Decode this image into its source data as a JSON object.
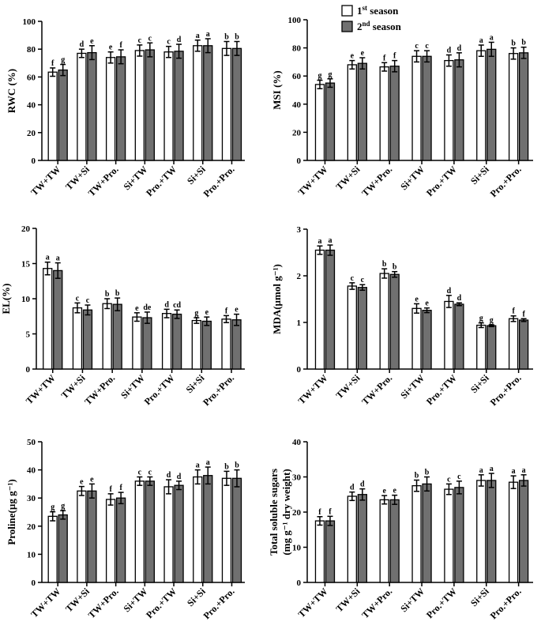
{
  "legend": [
    {
      "label": "1st season",
      "base": "1",
      "sup": "st",
      "rest": " season",
      "fill": "#ffffff"
    },
    {
      "label": "2nd season",
      "base": "2",
      "sup": "nd",
      "rest": " season",
      "fill": "#707070"
    }
  ],
  "chart_data": [
    {
      "type": "bar",
      "id": "rwc",
      "ylabel": "RWC (%)",
      "ylim": [
        0,
        100
      ],
      "yticks": [
        0,
        20,
        40,
        60,
        80,
        100
      ],
      "categories": [
        "TW+TW",
        "TW+Si",
        "TW+Pro.",
        "Si+TW",
        "Pro.+TW",
        "Si+Si",
        "Pro.+Pro."
      ],
      "series": [
        {
          "name": "1st season",
          "values": [
            63.5,
            77,
            74,
            79,
            78,
            82.5,
            80.5
          ],
          "errors": [
            3,
            3,
            4,
            4,
            4,
            4,
            5
          ],
          "letters": [
            "f",
            "d",
            "e",
            "c",
            "c",
            "a",
            "b"
          ]
        },
        {
          "name": "2nd season",
          "values": [
            65,
            77.5,
            74.5,
            79.5,
            78.5,
            82.5,
            80.5
          ],
          "errors": [
            4,
            5,
            5,
            5,
            5,
            5,
            5
          ],
          "letters": [
            "g",
            "e",
            "f",
            "c",
            "d",
            "a",
            "b"
          ]
        }
      ]
    },
    {
      "type": "bar",
      "id": "msi",
      "ylabel": "MSI (%)",
      "ylim": [
        0,
        100
      ],
      "yticks": [
        0,
        20,
        40,
        60,
        80,
        100
      ],
      "categories": [
        "TW+TW",
        "TW+Si",
        "TW+Pro.",
        "Si+TW",
        "Pro.+TW",
        "Si+Si",
        "Pro.+Pro."
      ],
      "series": [
        {
          "name": "1st season",
          "values": [
            54,
            68,
            66.5,
            74,
            71,
            78,
            76
          ],
          "errors": [
            3,
            3,
            3,
            4,
            4,
            4,
            4
          ],
          "letters": [
            "g",
            "e",
            "f",
            "c",
            "d",
            "a",
            "b"
          ]
        },
        {
          "name": "2nd season",
          "values": [
            55,
            69,
            67,
            74,
            71.5,
            79,
            76.5
          ],
          "errors": [
            3,
            4,
            4,
            4,
            5,
            5,
            4
          ],
          "letters": [
            "g",
            "e",
            "f",
            "c",
            "d",
            "a",
            "b"
          ]
        }
      ]
    },
    {
      "type": "bar",
      "id": "el",
      "ylabel": "EL(%)",
      "ylim": [
        0,
        20
      ],
      "yticks": [
        0,
        5,
        10,
        15,
        20
      ],
      "categories": [
        "TW+TW",
        "TW+Si",
        "TW+Pro.",
        "Si+TW",
        "Pro.+TW",
        "Si+Si",
        "Pro.+Pro."
      ],
      "series": [
        {
          "name": "1st season",
          "values": [
            14.3,
            8.7,
            9.3,
            7.4,
            7.9,
            6.9,
            7.1
          ],
          "errors": [
            0.9,
            0.7,
            0.7,
            0.6,
            0.6,
            0.4,
            0.5
          ],
          "letters": [
            "a",
            "c",
            "b",
            "e",
            "d",
            "g",
            "f"
          ]
        },
        {
          "name": "2nd season",
          "values": [
            14.0,
            8.4,
            9.2,
            7.3,
            7.8,
            6.8,
            7.0
          ],
          "errors": [
            1.1,
            0.7,
            0.9,
            0.8,
            0.6,
            0.6,
            0.8
          ],
          "letters": [
            "a",
            "c",
            "b",
            "de",
            "cd",
            "e",
            "e"
          ]
        }
      ]
    },
    {
      "type": "bar",
      "id": "mda",
      "ylabel": "MDA(µmol g⁻¹)",
      "ylim": [
        0,
        3
      ],
      "yticks": [
        0,
        1,
        2,
        3
      ],
      "categories": [
        "TW+TW",
        "TW+Si",
        "TW+Pro.",
        "Si+TW",
        "Pro.+TW",
        "Si+Si",
        "Pro.+Pro."
      ],
      "series": [
        {
          "name": "1st season",
          "values": [
            2.55,
            1.78,
            2.05,
            1.3,
            1.45,
            0.94,
            1.08
          ],
          "errors": [
            0.09,
            0.07,
            0.1,
            0.1,
            0.13,
            0.05,
            0.06
          ],
          "letters": [
            "a",
            "c",
            "b",
            "e",
            "d",
            "g",
            "f"
          ]
        },
        {
          "name": "2nd season",
          "values": [
            2.55,
            1.75,
            2.03,
            1.26,
            1.39,
            0.93,
            1.05
          ],
          "errors": [
            0.11,
            0.06,
            0.06,
            0.05,
            0.03,
            0.02,
            0.03
          ],
          "letters": [
            "a",
            "c",
            "b",
            "e",
            "d",
            "g",
            "f"
          ]
        }
      ]
    },
    {
      "type": "bar",
      "id": "proline",
      "ylabel": "Proline(µg g⁻¹)",
      "ylim": [
        0,
        50
      ],
      "yticks": [
        0,
        10,
        20,
        30,
        40,
        50
      ],
      "categories": [
        "TW+TW",
        "TW+Si",
        "TW+Pro.",
        "Si+TW",
        "Pro.+TW",
        "Si+Si",
        "Pro.+Pro."
      ],
      "series": [
        {
          "name": "1st season",
          "values": [
            23.5,
            32.5,
            29.5,
            36,
            34,
            37.5,
            37
          ],
          "errors": [
            1.6,
            1.6,
            2,
            1.5,
            2.5,
            2.5,
            2.5
          ],
          "letters": [
            "g",
            "e",
            "f",
            "c",
            "d",
            "a",
            "b"
          ]
        },
        {
          "name": "2nd season",
          "values": [
            24,
            32.5,
            30,
            36,
            34.5,
            38,
            37
          ],
          "errors": [
            1.5,
            2.5,
            2,
            1.5,
            1.5,
            3,
            3
          ],
          "letters": [
            "g",
            "e",
            "f",
            "c",
            "d",
            "a",
            "b"
          ]
        }
      ]
    },
    {
      "type": "bar",
      "id": "sugars",
      "ylabel_lines": [
        "Total soluble sugars",
        "(mg g⁻¹ dry weight)"
      ],
      "ylim": [
        0,
        40
      ],
      "yticks": [
        0,
        10,
        20,
        30,
        40
      ],
      "categories": [
        "TW+TW",
        "TW+Si",
        "TW+Pro.",
        "Si+TW",
        "Pro.+TW",
        "Si+Si",
        "Pro.+Pro."
      ],
      "series": [
        {
          "name": "1st season",
          "values": [
            17.5,
            24.5,
            23.5,
            27.5,
            26.5,
            29,
            28.5
          ],
          "errors": [
            1.2,
            1.2,
            1.2,
            1.6,
            1.5,
            1.6,
            1.8
          ],
          "letters": [
            "f",
            "d",
            "e",
            "b",
            "c",
            "a",
            "a"
          ]
        },
        {
          "name": "2nd season",
          "values": [
            17.5,
            25,
            23.5,
            28,
            27,
            29,
            29
          ],
          "errors": [
            1.3,
            1.6,
            1.3,
            2,
            1.8,
            2,
            1.6
          ],
          "letters": [
            "f",
            "d",
            "e",
            "b",
            "c",
            "a",
            "a"
          ]
        }
      ]
    }
  ]
}
